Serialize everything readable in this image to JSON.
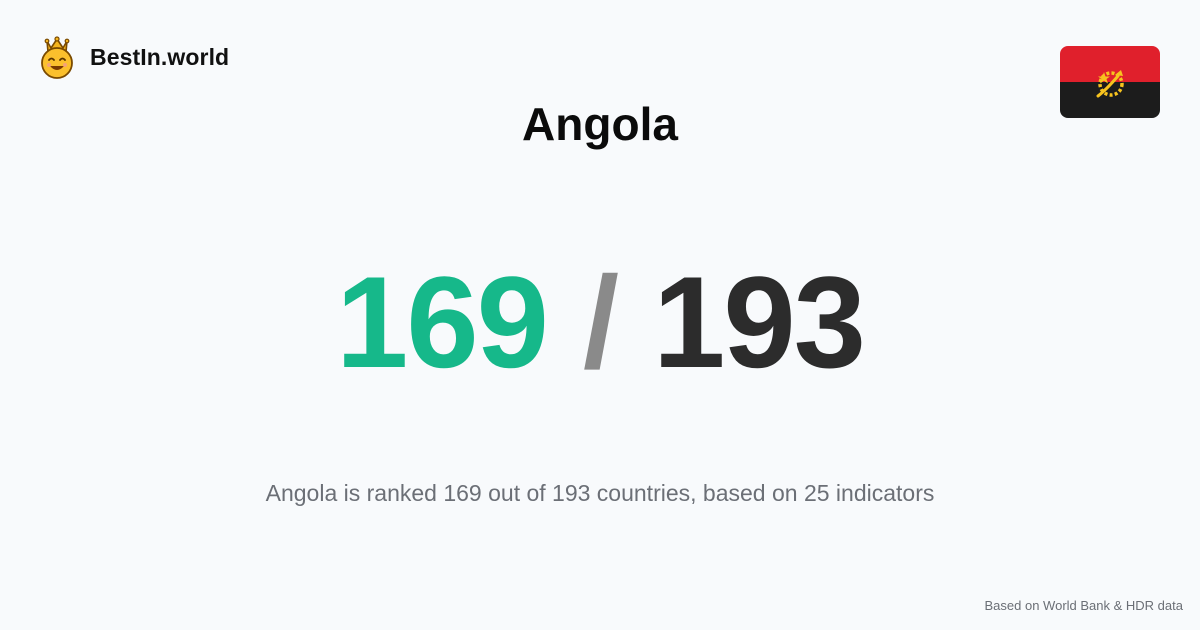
{
  "brand": {
    "name": "BestIn.world",
    "icon": "crowned-smiley-icon"
  },
  "country": {
    "name": "Angola",
    "flag_icon": "angola-flag-icon"
  },
  "ranking": {
    "rank": "169",
    "separator": "/",
    "total": "193"
  },
  "summary": "Angola is ranked 169 out of 193 countries, based on 25 indicators",
  "footer": "Based on World Bank & HDR data",
  "colors": {
    "rank": "#16b88a",
    "separator": "#8a8a8a",
    "total": "#2c2c2c",
    "background": "#f8fafc",
    "muted_text": "#6b6f76"
  }
}
